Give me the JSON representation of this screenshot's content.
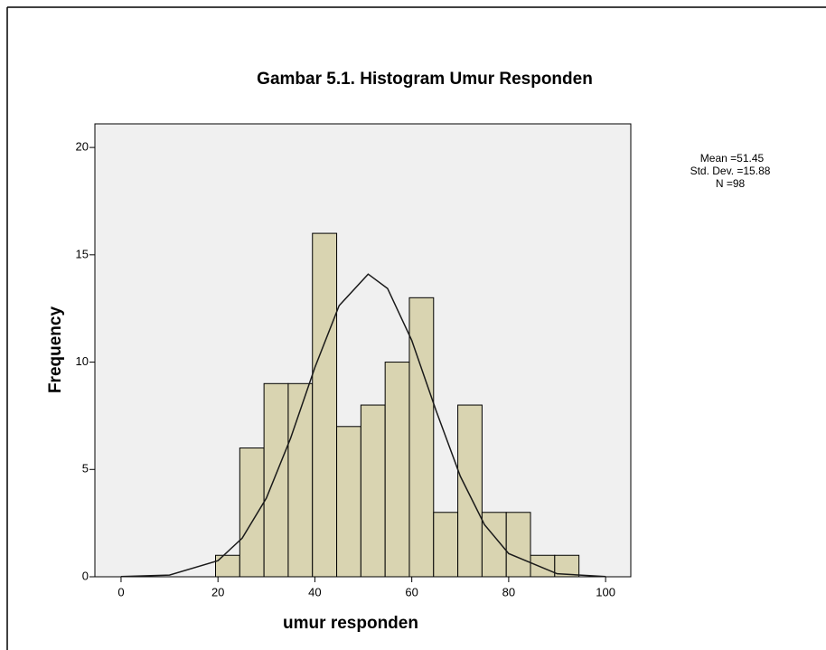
{
  "chart_data": {
    "type": "histogram",
    "title": "Gambar 5.1. Histogram Umur Responden",
    "x_label": "umur responden",
    "y_label": "Frequency",
    "stats": [
      "Mean =51.45",
      "Std. Dev. =15.88",
      "N =98"
    ],
    "bins": [
      19.5,
      24.5,
      29.5,
      34.5,
      39.5,
      44.5,
      49.5,
      54.5,
      59.5,
      64.5,
      69.5,
      74.5,
      79.5,
      84.5,
      89.5,
      94.5
    ],
    "counts": [
      1,
      6,
      9,
      9,
      16,
      7,
      8,
      10,
      13,
      3,
      8,
      3,
      3,
      1,
      1
    ],
    "color": "#d9d4b1",
    "curve": {
      "color": "#1a1a1a",
      "x": [
        0,
        10,
        20,
        25,
        30,
        35,
        40,
        45,
        51,
        55,
        60,
        65,
        70,
        75,
        80,
        90,
        100
      ],
      "y": [
        0.01,
        0.08,
        0.75,
        1.8,
        3.67,
        6.46,
        9.75,
        12.63,
        14.1,
        13.43,
        11.01,
        7.75,
        4.69,
        2.43,
        1.08,
        0.14,
        0.01
      ]
    },
    "xlim": [
      -5.4,
      105.2
    ],
    "ylim": [
      0,
      21.1
    ],
    "xticks": [
      0,
      20,
      40,
      60,
      80,
      100
    ],
    "yticks": [
      0,
      5,
      10,
      15,
      20
    ],
    "plot_background": "#f0f0f0"
  }
}
